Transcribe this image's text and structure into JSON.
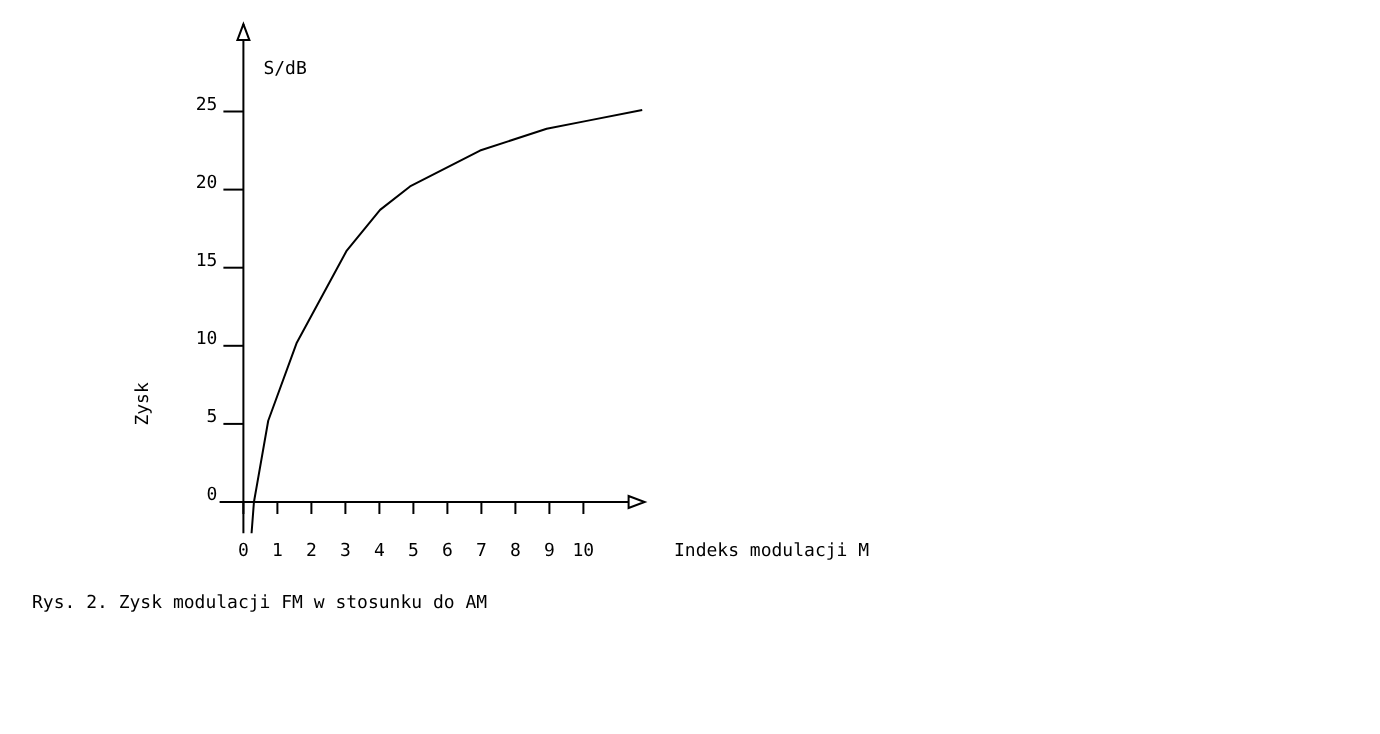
{
  "chart_data": {
    "type": "line",
    "xlabel": "Indeks modulacji M",
    "ylabel": "Zysk",
    "annotations": [
      "S/dB",
      "Rys. 2. Zysk modulacji FM w stosunku do AM"
    ],
    "xlim": [
      -0.7,
      11.8
    ],
    "xticks": [
      0,
      1,
      2,
      3,
      4,
      5,
      6,
      7,
      8,
      9,
      10
    ],
    "ylim": [
      -2,
      30.6
    ],
    "yticks": [
      0,
      5,
      10,
      15,
      20,
      25
    ],
    "grid": false,
    "marker": "none",
    "line_style": "solid",
    "series": [
      {
        "color": "#000000",
        "x": [
          0.24,
          0.31,
          0.73,
          1.57,
          3.04,
          4.02,
          4.9,
          6.96,
          8.92,
          10.1,
          11.73
        ],
        "values": [
          -2,
          0,
          5.2,
          10.2,
          16.1,
          18.7,
          20.2,
          22.5,
          23.9,
          24.4,
          25.1
        ]
      }
    ]
  }
}
